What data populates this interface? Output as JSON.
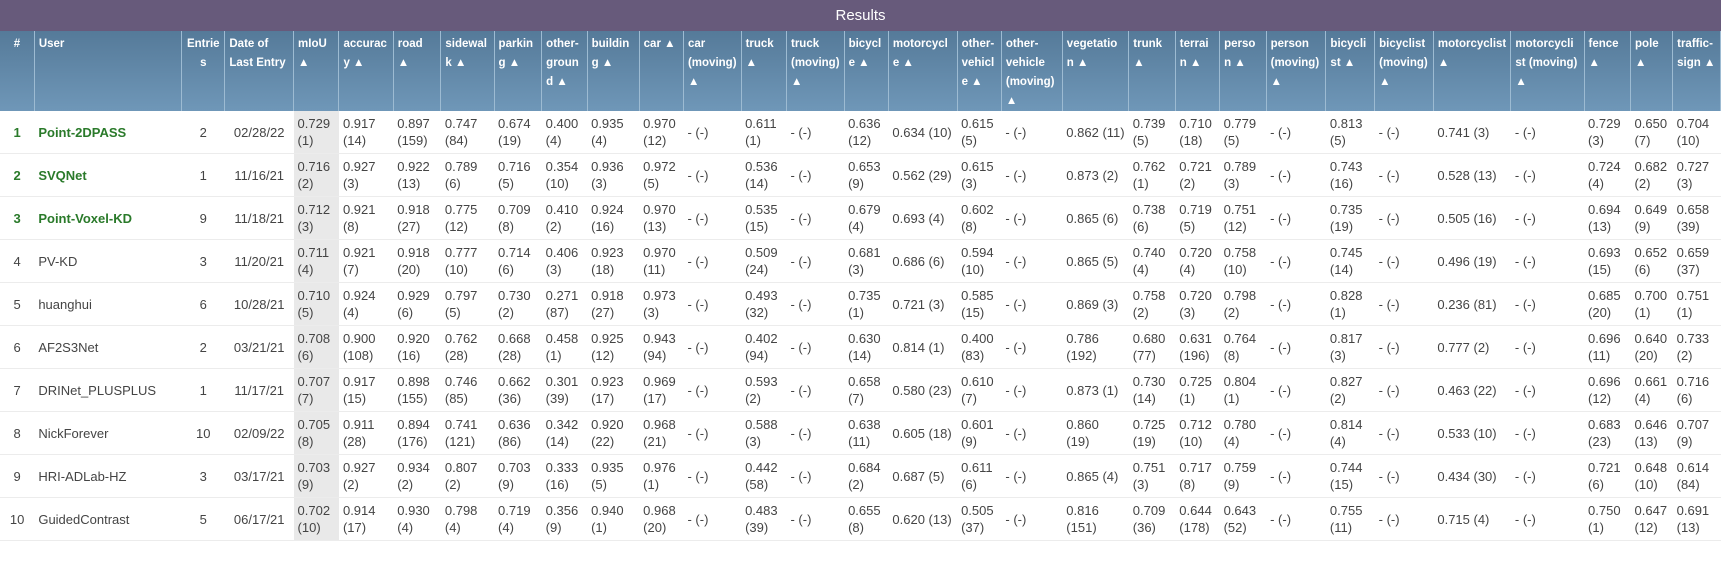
{
  "title": "Results",
  "columns": [
    "#",
    "User",
    "Entries",
    "Date of Last Entry",
    "mIoU ▲",
    "accuracy ▲",
    "road ▲",
    "sidewalk ▲",
    "parking ▲",
    "other-ground ▲",
    "building ▲",
    "car ▲",
    "car (moving) ▲",
    "truck ▲",
    "truck (moving) ▲",
    "bicycle ▲",
    "motorcycle ▲",
    "other-vehicle ▲",
    "other-vehicle (moving) ▲",
    "vegetation ▲",
    "trunk ▲",
    "terrain ▲",
    "person ▲",
    "person (moving) ▲",
    "bicyclist ▲",
    "bicyclist (moving) ▲",
    "motorcyclist ▲",
    "motorcyclist (moving) ▲",
    "fence ▲",
    "pole ▲",
    "traffic-sign ▲"
  ],
  "rows": [
    {
      "rank": "1",
      "user": "Point-2DPASS",
      "highlight": true,
      "entries": "2",
      "date": "02/28/22",
      "cells": [
        "0.729 (1)",
        "0.917 (14)",
        "0.897 (159)",
        "0.747 (84)",
        "0.674 (19)",
        "0.400 (4)",
        "0.935 (4)",
        "0.970 (12)",
        "- (-)",
        "0.611 (1)",
        "- (-)",
        "0.636 (12)",
        "0.634 (10)",
        "0.615 (5)",
        "- (-)",
        "0.862 (11)",
        "0.739 (5)",
        "0.710 (18)",
        "0.779 (5)",
        "- (-)",
        "0.813 (5)",
        "- (-)",
        "0.741 (3)",
        "- (-)",
        "0.729 (3)",
        "0.650 (7)",
        "0.704 (10)"
      ]
    },
    {
      "rank": "2",
      "user": "SVQNet",
      "highlight": true,
      "entries": "1",
      "date": "11/16/21",
      "cells": [
        "0.716 (2)",
        "0.927 (3)",
        "0.922 (13)",
        "0.789 (6)",
        "0.716 (5)",
        "0.354 (10)",
        "0.936 (3)",
        "0.972 (5)",
        "- (-)",
        "0.536 (14)",
        "- (-)",
        "0.653 (9)",
        "0.562 (29)",
        "0.615 (3)",
        "- (-)",
        "0.873 (2)",
        "0.762 (1)",
        "0.721 (2)",
        "0.789 (3)",
        "- (-)",
        "0.743 (16)",
        "- (-)",
        "0.528 (13)",
        "- (-)",
        "0.724 (4)",
        "0.682 (2)",
        "0.727 (3)"
      ]
    },
    {
      "rank": "3",
      "user": "Point-Voxel-KD",
      "highlight": true,
      "entries": "9",
      "date": "11/18/21",
      "cells": [
        "0.712 (3)",
        "0.921 (8)",
        "0.918 (27)",
        "0.775 (12)",
        "0.709 (8)",
        "0.410 (2)",
        "0.924 (16)",
        "0.970 (13)",
        "- (-)",
        "0.535 (15)",
        "- (-)",
        "0.679 (4)",
        "0.693 (4)",
        "0.602 (8)",
        "- (-)",
        "0.865 (6)",
        "0.738 (6)",
        "0.719 (5)",
        "0.751 (12)",
        "- (-)",
        "0.735 (19)",
        "- (-)",
        "0.505 (16)",
        "- (-)",
        "0.694 (13)",
        "0.649 (9)",
        "0.658 (39)"
      ]
    },
    {
      "rank": "4",
      "user": "PV-KD",
      "highlight": false,
      "entries": "3",
      "date": "11/20/21",
      "cells": [
        "0.711 (4)",
        "0.921 (7)",
        "0.918 (20)",
        "0.777 (10)",
        "0.714 (6)",
        "0.406 (3)",
        "0.923 (18)",
        "0.970 (11)",
        "- (-)",
        "0.509 (24)",
        "- (-)",
        "0.681 (3)",
        "0.686 (6)",
        "0.594 (10)",
        "- (-)",
        "0.865 (5)",
        "0.740 (4)",
        "0.720 (4)",
        "0.758 (10)",
        "- (-)",
        "0.745 (14)",
        "- (-)",
        "0.496 (19)",
        "- (-)",
        "0.693 (15)",
        "0.652 (6)",
        "0.659 (37)"
      ]
    },
    {
      "rank": "5",
      "user": "huanghui",
      "highlight": false,
      "entries": "6",
      "date": "10/28/21",
      "cells": [
        "0.710 (5)",
        "0.924 (4)",
        "0.929 (6)",
        "0.797 (5)",
        "0.730 (2)",
        "0.271 (87)",
        "0.918 (27)",
        "0.973 (3)",
        "- (-)",
        "0.493 (32)",
        "- (-)",
        "0.735 (1)",
        "0.721 (3)",
        "0.585 (15)",
        "- (-)",
        "0.869 (3)",
        "0.758 (2)",
        "0.720 (3)",
        "0.798 (2)",
        "- (-)",
        "0.828 (1)",
        "- (-)",
        "0.236 (81)",
        "- (-)",
        "0.685 (20)",
        "0.700 (1)",
        "0.751 (1)"
      ]
    },
    {
      "rank": "6",
      "user": "AF2S3Net",
      "highlight": false,
      "entries": "2",
      "date": "03/21/21",
      "cells": [
        "0.708 (6)",
        "0.900 (108)",
        "0.920 (16)",
        "0.762 (28)",
        "0.668 (28)",
        "0.458 (1)",
        "0.925 (12)",
        "0.943 (94)",
        "- (-)",
        "0.402 (94)",
        "- (-)",
        "0.630 (14)",
        "0.814 (1)",
        "0.400 (83)",
        "- (-)",
        "0.786 (192)",
        "0.680 (77)",
        "0.631 (196)",
        "0.764 (8)",
        "- (-)",
        "0.817 (3)",
        "- (-)",
        "0.777 (2)",
        "- (-)",
        "0.696 (11)",
        "0.640 (20)",
        "0.733 (2)"
      ]
    },
    {
      "rank": "7",
      "user": "DRINet_PLUSPLUS",
      "highlight": false,
      "entries": "1",
      "date": "11/17/21",
      "cells": [
        "0.707 (7)",
        "0.917 (15)",
        "0.898 (155)",
        "0.746 (85)",
        "0.662 (36)",
        "0.301 (39)",
        "0.923 (17)",
        "0.969 (17)",
        "- (-)",
        "0.593 (2)",
        "- (-)",
        "0.658 (7)",
        "0.580 (23)",
        "0.610 (7)",
        "- (-)",
        "0.873 (1)",
        "0.730 (14)",
        "0.725 (1)",
        "0.804 (1)",
        "- (-)",
        "0.827 (2)",
        "- (-)",
        "0.463 (22)",
        "- (-)",
        "0.696 (12)",
        "0.661 (4)",
        "0.716 (6)"
      ]
    },
    {
      "rank": "8",
      "user": "NickForever",
      "highlight": false,
      "entries": "10",
      "date": "02/09/22",
      "cells": [
        "0.705 (8)",
        "0.911 (28)",
        "0.894 (176)",
        "0.741 (121)",
        "0.636 (86)",
        "0.342 (14)",
        "0.920 (22)",
        "0.968 (21)",
        "- (-)",
        "0.588 (3)",
        "- (-)",
        "0.638 (11)",
        "0.605 (18)",
        "0.601 (9)",
        "- (-)",
        "0.860 (19)",
        "0.725 (19)",
        "0.712 (10)",
        "0.780 (4)",
        "- (-)",
        "0.814 (4)",
        "- (-)",
        "0.533 (10)",
        "- (-)",
        "0.683 (23)",
        "0.646 (13)",
        "0.707 (9)"
      ]
    },
    {
      "rank": "9",
      "user": "HRI-ADLab-HZ",
      "highlight": false,
      "entries": "3",
      "date": "03/17/21",
      "cells": [
        "0.703 (9)",
        "0.927 (2)",
        "0.934 (2)",
        "0.807 (2)",
        "0.703 (9)",
        "0.333 (16)",
        "0.935 (5)",
        "0.976 (1)",
        "- (-)",
        "0.442 (58)",
        "- (-)",
        "0.684 (2)",
        "0.687 (5)",
        "0.611 (6)",
        "- (-)",
        "0.865 (4)",
        "0.751 (3)",
        "0.717 (8)",
        "0.759 (9)",
        "- (-)",
        "0.744 (15)",
        "- (-)",
        "0.434 (30)",
        "- (-)",
        "0.721 (6)",
        "0.648 (10)",
        "0.614 (84)"
      ]
    },
    {
      "rank": "10",
      "user": "GuidedContrast",
      "highlight": false,
      "entries": "5",
      "date": "06/17/21",
      "cells": [
        "0.702 (10)",
        "0.914 (17)",
        "0.930 (4)",
        "0.798 (4)",
        "0.719 (4)",
        "0.356 (9)",
        "0.940 (1)",
        "0.968 (20)",
        "- (-)",
        "0.483 (39)",
        "- (-)",
        "0.655 (8)",
        "0.620 (13)",
        "0.505 (37)",
        "- (-)",
        "0.816 (151)",
        "0.709 (36)",
        "0.644 (178)",
        "0.643 (52)",
        "- (-)",
        "0.755 (11)",
        "- (-)",
        "0.715 (4)",
        "- (-)",
        "0.750 (1)",
        "0.647 (12)",
        "0.691 (13)"
      ]
    }
  ]
}
